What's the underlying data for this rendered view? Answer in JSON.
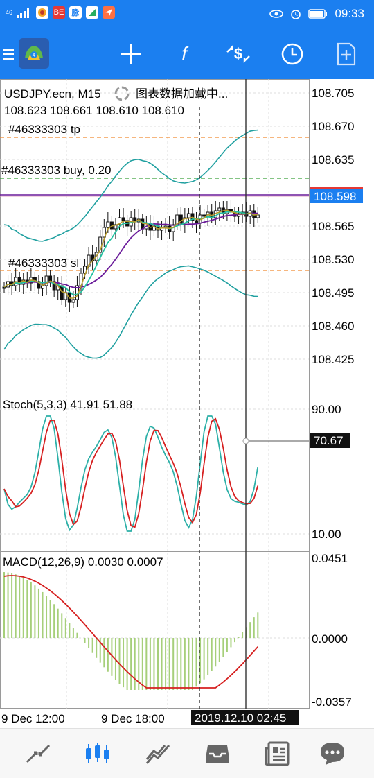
{
  "status_bar": {
    "signal": "46",
    "app_badge": "BE",
    "time": "09:33"
  },
  "toolbar": {
    "menu_icon": "menu-icon",
    "logo": "metatrader-logo",
    "crosshair": "crosshair-icon",
    "indicators": "indicator-f-icon",
    "trade": "trade-dollar-icon",
    "period": "clock-icon",
    "new_order": "new-order-icon"
  },
  "chart": {
    "symbol_line": "USDJPY.ecn, M15",
    "loading_text": "图表数据加载中...",
    "ohlc_line": "108.623 108.661 108.610 108.610",
    "tp_label": "#46333303 tp",
    "buy_label": "#46333303 buy, 0.20",
    "sl_label": "#46333303 sl",
    "current_price": "108.598",
    "price_ticks": [
      "108.705",
      "108.670",
      "108.635",
      "108.600",
      "108.565",
      "108.530",
      "108.495",
      "108.460",
      "108.425"
    ],
    "stoch_label": "Stoch(5,3,3) 41.91 51.88",
    "stoch_ticks": [
      "90.00",
      "10.00"
    ],
    "stoch_current": "70.67",
    "macd_label": "MACD(12,26,9) 0.0030 0.0007",
    "macd_ticks": [
      "0.0451",
      "0.0000",
      "-0.0357"
    ],
    "time_labels": [
      "9 Dec 12:00",
      "9 Dec 18:00"
    ],
    "cursor_time": "2019.12.10 02:45",
    "colors": {
      "bollinger": "#20a0a0",
      "ma_fast": "#b59a2a",
      "ma_slow": "#6a1b9a",
      "ma_mid": "#22c1a0",
      "stoch_main": "#2db0a8",
      "stoch_signal": "#d62020",
      "macd_hist": "#a6cf7a",
      "macd_signal": "#d62020",
      "tp_line": "#f08a30",
      "buy_line": "#3aa03a",
      "price_badge": "#1b7ff0",
      "crosshair_badge": "#111111"
    }
  },
  "bottom_nav": {
    "items": [
      "quotes-icon",
      "chart-icon",
      "trade-icon",
      "history-icon",
      "news-icon",
      "chat-icon"
    ],
    "active": "chart-icon"
  }
}
